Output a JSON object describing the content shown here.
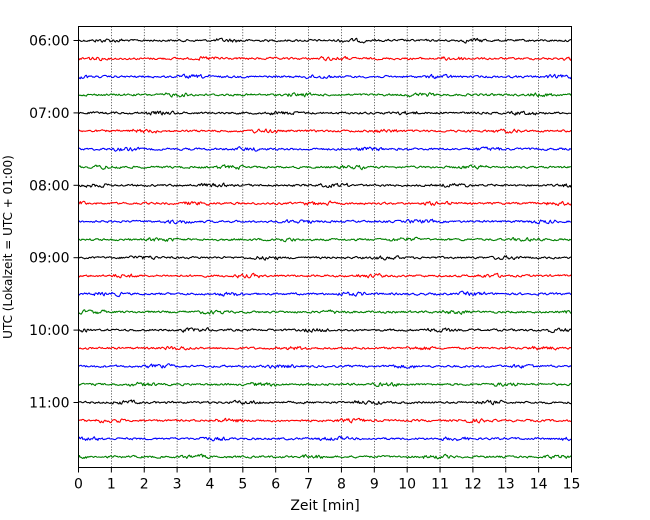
{
  "chart_data": {
    "type": "line",
    "title": "",
    "xlabel": "Zeit  [min]",
    "ylabel": "UTC (Lokalzeit = UTC + 01:00)",
    "xlim": [
      0,
      15
    ],
    "x_ticks": [
      "0",
      "1",
      "2",
      "3",
      "4",
      "5",
      "6",
      "7",
      "8",
      "9",
      "10",
      "11",
      "12",
      "13",
      "14",
      "15"
    ],
    "y_tick_labels": [
      "06:00",
      "07:00",
      "08:00",
      "09:00",
      "10:00",
      "11:00"
    ],
    "grid": "vertical dotted lines at each minute",
    "trace_start_hour": "06:00",
    "trace_interval_minutes": 15,
    "trace_count": 24,
    "trace_color_cycle": [
      "#000000",
      "#ff0000",
      "#0000ff",
      "#008000"
    ]
  }
}
